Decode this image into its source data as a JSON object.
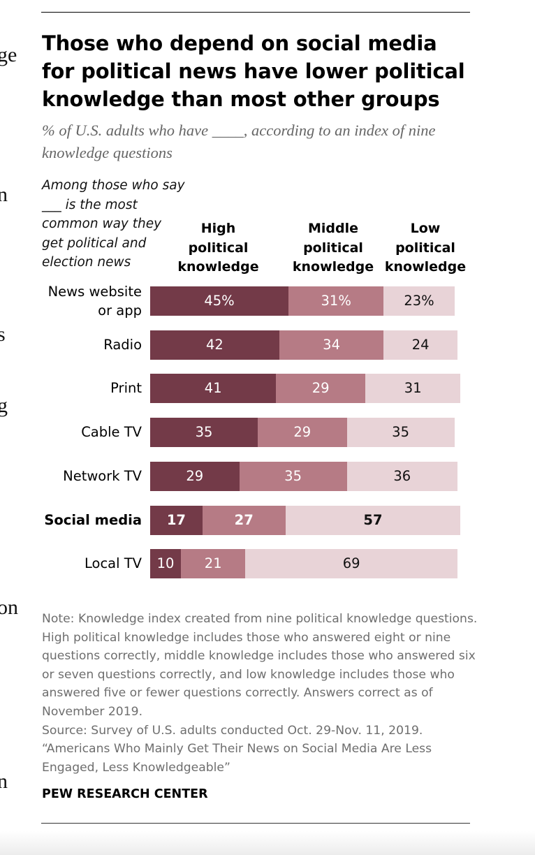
{
  "page_edge_fragments": [
    "ge",
    "n",
    "s",
    "g",
    "on",
    "n"
  ],
  "title": "Those who depend on social media for political news have lower political knowledge than most other groups",
  "subtitle": "% of U.S. adults who have ____, according to an index of nine knowledge questions",
  "row_header": "Among those who say ___ is the most common way they get political and election news",
  "chart_data": {
    "type": "bar",
    "stacked": true,
    "orientation": "horizontal",
    "title": "Those who depend on social media for political news have lower political knowledge than most other groups",
    "subtitle": "% of U.S. adults who have ____, according to an index of nine knowledge questions",
    "categories": [
      "News website or app",
      "Radio",
      "Print",
      "Cable TV",
      "Network TV",
      "Social media",
      "Local TV"
    ],
    "highlighted_category": "Social media",
    "series": [
      {
        "name": "High political knowledge",
        "color": "#733a48",
        "values": [
          45,
          42,
          41,
          35,
          29,
          17,
          10
        ],
        "labels": [
          "45%",
          "42",
          "41",
          "35",
          "29",
          "17",
          "10"
        ]
      },
      {
        "name": "Middle political knowledge",
        "color": "#b67b85",
        "values": [
          31,
          34,
          29,
          29,
          35,
          27,
          21
        ],
        "labels": [
          "31%",
          "34",
          "29",
          "29",
          "35",
          "27",
          "21"
        ]
      },
      {
        "name": "Low political knowledge",
        "color": "#e8d3d7",
        "values": [
          23,
          24,
          31,
          35,
          36,
          57,
          69
        ],
        "labels": [
          "23%",
          "24",
          "31",
          "35",
          "36",
          "57",
          "69"
        ]
      }
    ],
    "xlim": [
      0,
      100
    ],
    "grid": false,
    "legend": "column headers above bars"
  },
  "notes": [
    "Note: Knowledge index created from nine political knowledge questions. High political knowledge includes those who answered eight or nine questions correctly, middle knowledge includes those who answered six or seven questions correctly, and low knowledge includes those who answered five or fewer questions correctly. Answers correct as of November 2019.",
    "Source: Survey of U.S. adults conducted Oct. 29-Nov. 11, 2019.",
    "“Americans Who Mainly Get Their News on Social Media Are Less Engaged, Less Knowledgeable”"
  ],
  "brand": "PEW RESEARCH CENTER"
}
